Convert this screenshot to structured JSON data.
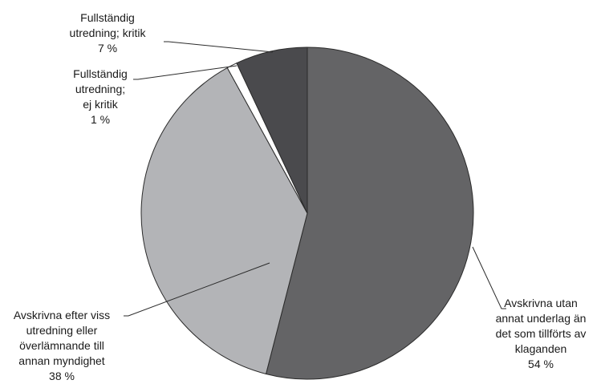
{
  "chart_data": {
    "type": "pie",
    "title": "",
    "slices": [
      {
        "label_lines": [
          "Avskrivna utan",
          "annat underlag än",
          "det som tillförts av",
          "klaganden"
        ],
        "value": 54,
        "value_label": "54 %",
        "color": "#646466"
      },
      {
        "label_lines": [
          "Avskrivna efter viss",
          "utredning eller",
          "överlämnande till",
          "annan myndighet"
        ],
        "value": 38,
        "value_label": "38 %",
        "color": "#b3b4b7"
      },
      {
        "label_lines": [
          "Fullständig",
          "utredning;",
          "ej kritik"
        ],
        "value": 1,
        "value_label": "1 %",
        "color": "#ffffff"
      },
      {
        "label_lines": [
          "Fullständig",
          "utredning; kritik"
        ],
        "value": 7,
        "value_label": "7 %",
        "color": "#4a4a4d"
      }
    ],
    "start_angle_deg": 0,
    "direction": "clockwise",
    "legend": "none (data labels with leader lines)"
  }
}
